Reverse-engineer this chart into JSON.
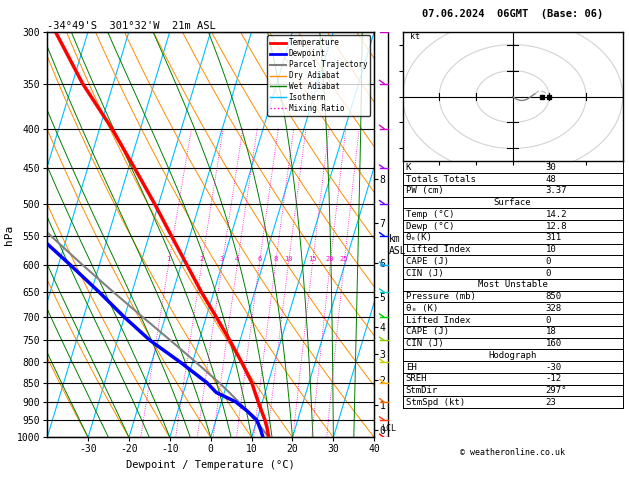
{
  "title_left": "-34°49'S  301°32'W  21m ASL",
  "title_right": "07.06.2024  06GMT  (Base: 06)",
  "xlabel": "Dewpoint / Temperature (°C)",
  "ylabel_left": "hPa",
  "temp_profile": {
    "pressure": [
      1000,
      975,
      950,
      925,
      900,
      875,
      850,
      800,
      750,
      700,
      650,
      600,
      550,
      500,
      450,
      400,
      350,
      300
    ],
    "temperature": [
      14.2,
      13.2,
      12.0,
      10.5,
      9.0,
      7.5,
      6.0,
      2.0,
      -2.5,
      -7.5,
      -13.0,
      -18.5,
      -24.5,
      -31.0,
      -38.5,
      -47.0,
      -57.5,
      -68.0
    ]
  },
  "dewpoint_profile": {
    "pressure": [
      1000,
      975,
      950,
      925,
      900,
      875,
      850,
      800,
      750,
      700,
      650,
      600,
      550,
      500,
      450,
      400,
      350,
      300
    ],
    "temperature": [
      12.8,
      11.5,
      10.0,
      7.0,
      3.5,
      -2.0,
      -5.0,
      -13.0,
      -22.0,
      -30.0,
      -38.0,
      -47.0,
      -57.0,
      -65.0,
      -72.0,
      -78.0,
      -82.0,
      -86.0
    ]
  },
  "parcel_profile": {
    "pressure": [
      1000,
      975,
      950,
      925,
      900,
      875,
      850,
      800,
      750,
      700,
      650,
      600,
      550,
      500,
      450,
      400,
      350,
      300
    ],
    "temperature": [
      14.2,
      12.0,
      9.5,
      7.0,
      4.2,
      1.2,
      -2.0,
      -9.2,
      -17.0,
      -25.5,
      -34.5,
      -44.0,
      -54.0,
      -64.5,
      -75.5,
      -87.0,
      -99.0,
      -112.0
    ]
  },
  "colors": {
    "temperature": "#ff0000",
    "dewpoint": "#0000ff",
    "parcel": "#808080",
    "dry_adiabat": "#ff8c00",
    "wet_adiabat": "#008000",
    "isotherm": "#00bfff",
    "mixing_ratio": "#ff00cc",
    "background": "#ffffff",
    "grid": "#000000"
  },
  "mixing_ratios": [
    1,
    2,
    3,
    4,
    6,
    8,
    10,
    15,
    20,
    25
  ],
  "km_pressures": [
    977,
    908,
    843,
    781,
    720,
    660,
    596,
    530,
    464
  ],
  "km_values": [
    0,
    1,
    2,
    3,
    4,
    5,
    6,
    7,
    8
  ],
  "lcl_pressure": 975,
  "wind_barb_colors": {
    "300": "#cc00cc",
    "350": "#cc00cc",
    "400": "#cc00cc",
    "450": "#aa00ff",
    "500": "#6600ff",
    "550": "#0000ff",
    "600": "#00aaff",
    "650": "#00cccc",
    "700": "#00cc00",
    "750": "#88cc00",
    "800": "#cccc00",
    "850": "#ffaa00",
    "900": "#ff6600",
    "950": "#ff3300",
    "1000": "#ff0000"
  }
}
